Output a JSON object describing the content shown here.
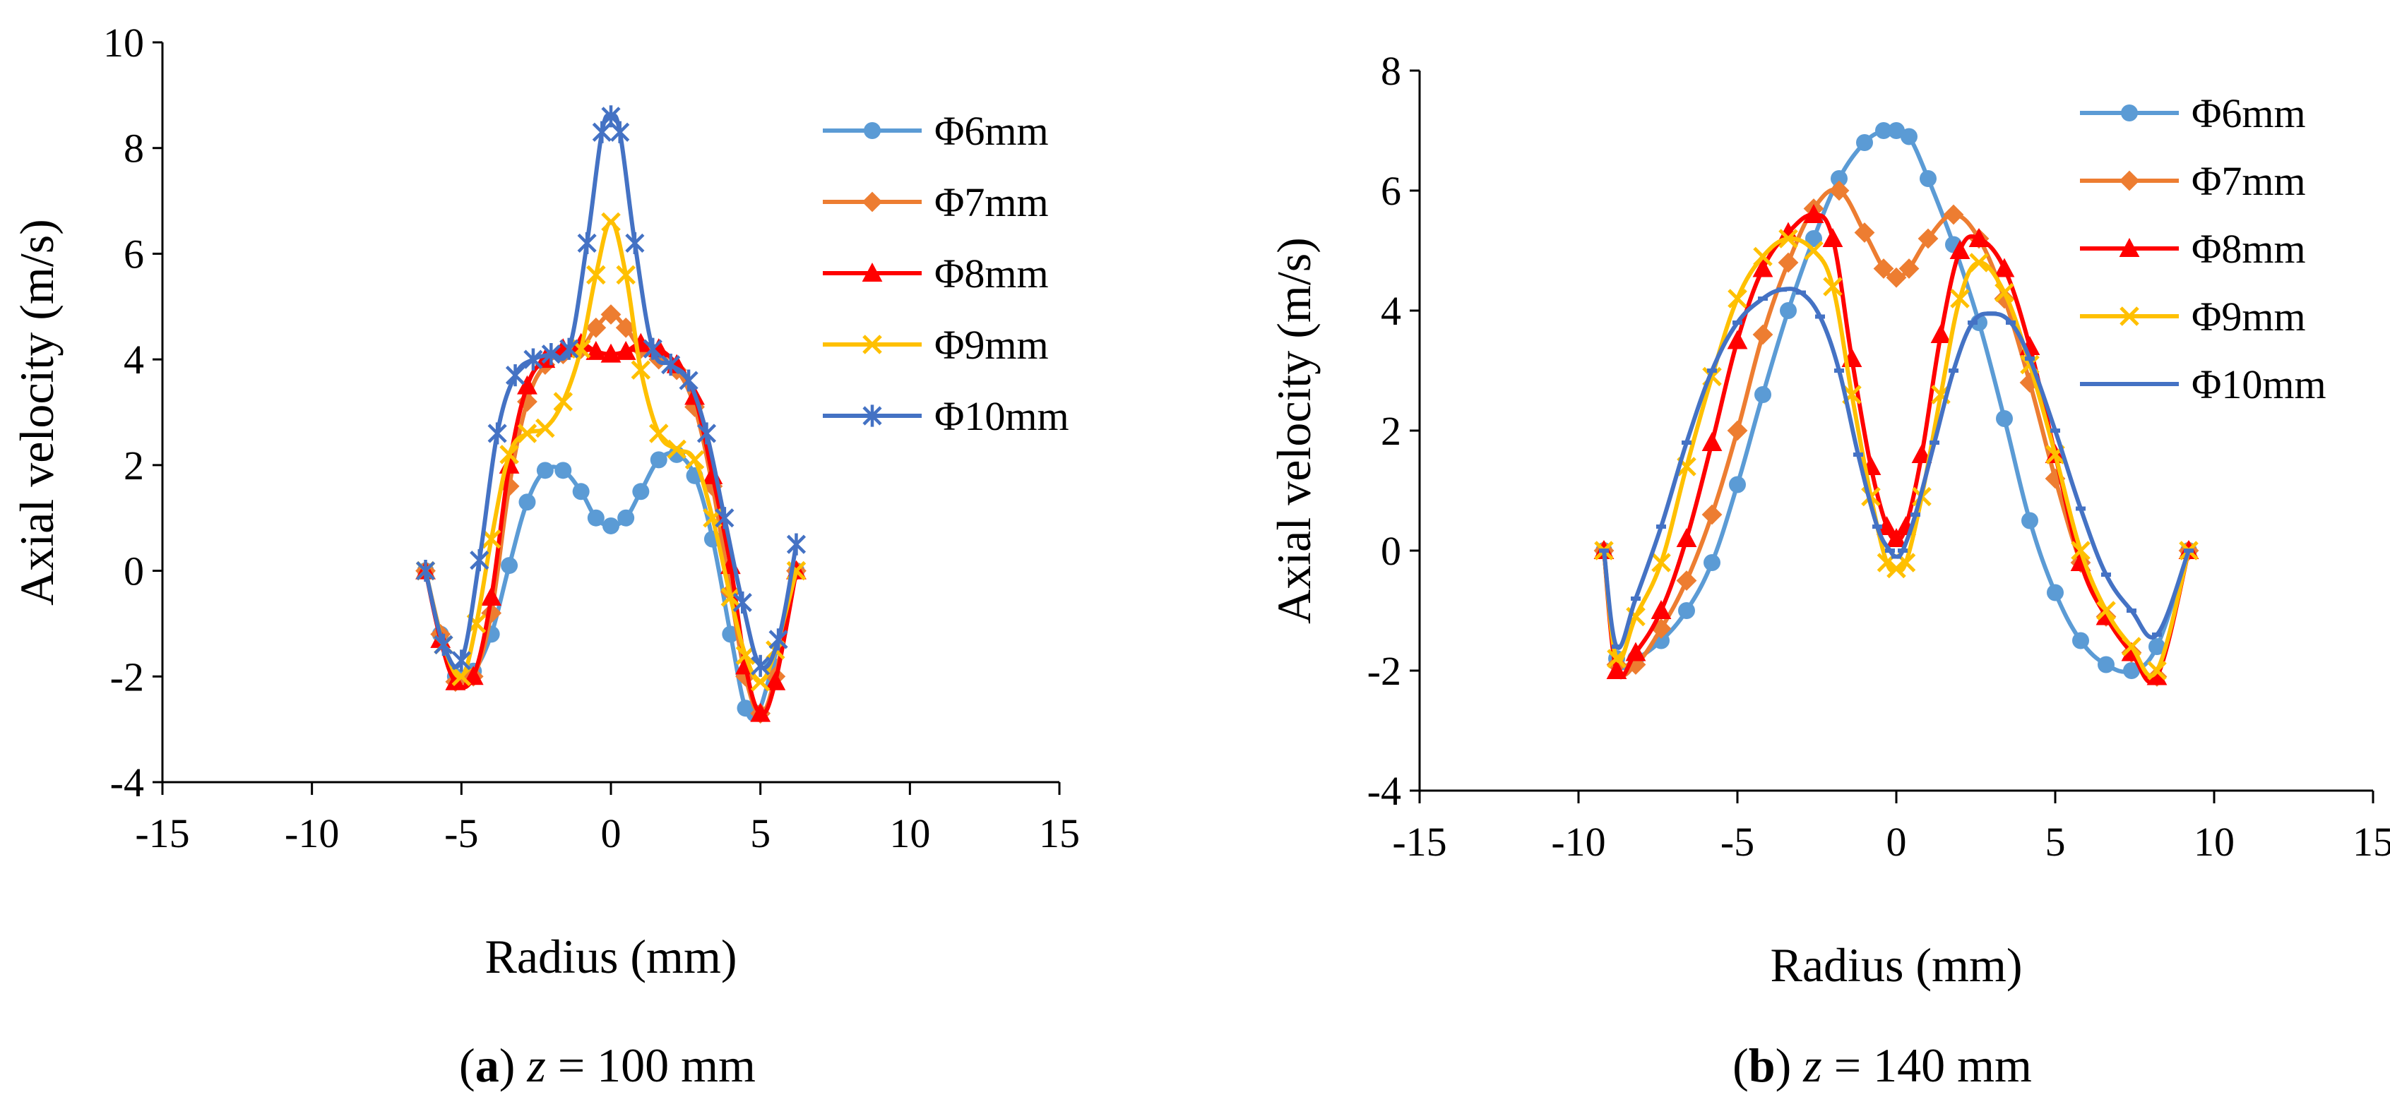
{
  "chart_data": [
    {
      "type": "line",
      "id": "a",
      "caption": {
        "label": "a",
        "z_symbol": "z",
        "rest": " = 100 mm"
      },
      "xlabel": "Radius (mm)",
      "ylabel": "Axial velocity (m/s)",
      "xlim": [
        -15,
        15
      ],
      "ylim": [
        -4,
        10
      ],
      "xticks": [
        -15,
        -10,
        -5,
        0,
        5,
        10,
        15
      ],
      "yticks": [
        -4,
        -2,
        0,
        2,
        4,
        6,
        8,
        10
      ],
      "legend_position": "top-right",
      "series": [
        {
          "name": "Φ6mm",
          "color": "#5B9BD5",
          "marker": "circle",
          "x": [
            -6.2,
            -5.7,
            -5.2,
            -4.6,
            -4.0,
            -3.4,
            -2.8,
            -2.2,
            -1.6,
            -1.0,
            -0.5,
            0,
            0.5,
            1.0,
            1.6,
            2.2,
            2.8,
            3.4,
            4.0,
            4.5,
            4.9,
            5.4,
            6.2
          ],
          "y": [
            0,
            -1.2,
            -2.0,
            -1.9,
            -1.2,
            0.1,
            1.3,
            1.9,
            1.9,
            1.5,
            1.0,
            0.85,
            1.0,
            1.5,
            2.1,
            2.2,
            1.8,
            0.6,
            -1.2,
            -2.6,
            -2.7,
            -1.8,
            0
          ]
        },
        {
          "name": "Φ7mm",
          "color": "#ED7D31",
          "marker": "diamond",
          "x": [
            -6.2,
            -5.7,
            -5.2,
            -4.6,
            -4.0,
            -3.4,
            -2.8,
            -2.2,
            -1.6,
            -1.0,
            -0.5,
            0,
            0.5,
            1.0,
            1.6,
            2.2,
            2.8,
            3.4,
            4.0,
            4.5,
            5.0,
            5.5,
            6.2
          ],
          "y": [
            0,
            -1.2,
            -2.1,
            -2.0,
            -0.8,
            1.6,
            3.2,
            3.9,
            4.1,
            4.2,
            4.6,
            4.85,
            4.6,
            4.2,
            4.0,
            3.8,
            3.1,
            1.6,
            -0.4,
            -2.0,
            -2.7,
            -2.0,
            0
          ]
        },
        {
          "name": "Φ8mm",
          "color": "#FF0000",
          "marker": "triangle",
          "x": [
            -6.2,
            -5.7,
            -5.2,
            -4.6,
            -4.0,
            -3.4,
            -2.8,
            -2.2,
            -1.6,
            -1.0,
            -0.5,
            0,
            0.5,
            1.0,
            1.6,
            2.2,
            2.8,
            3.4,
            4.0,
            4.5,
            5.0,
            5.5,
            6.2
          ],
          "y": [
            0,
            -1.3,
            -2.1,
            -2.0,
            -0.5,
            2.0,
            3.5,
            4.0,
            4.2,
            4.3,
            4.15,
            4.1,
            4.15,
            4.3,
            4.2,
            3.9,
            3.3,
            1.8,
            0.1,
            -1.8,
            -2.7,
            -2.1,
            0
          ]
        },
        {
          "name": "Φ9mm",
          "color": "#FFC000",
          "marker": "x",
          "x": [
            -6.2,
            -5.6,
            -5.0,
            -4.5,
            -4.0,
            -3.4,
            -2.8,
            -2.2,
            -1.6,
            -1.0,
            -0.5,
            0,
            0.5,
            1.0,
            1.6,
            2.2,
            2.8,
            3.4,
            4.0,
            4.5,
            5.0,
            5.5,
            6.2
          ],
          "y": [
            0,
            -1.4,
            -2.0,
            -1.0,
            0.6,
            2.2,
            2.6,
            2.7,
            3.2,
            4.2,
            5.6,
            6.6,
            5.6,
            3.8,
            2.6,
            2.3,
            2.1,
            1.0,
            -0.5,
            -1.6,
            -2.1,
            -1.5,
            0
          ]
        },
        {
          "name": "Φ10mm",
          "color": "#4472C4",
          "marker": "star",
          "x": [
            -6.2,
            -5.6,
            -5.0,
            -4.4,
            -3.8,
            -3.2,
            -2.6,
            -2.0,
            -1.4,
            -0.8,
            -0.3,
            0,
            0.3,
            0.8,
            1.4,
            2.0,
            2.6,
            3.2,
            3.8,
            4.4,
            5.0,
            5.6,
            6.2
          ],
          "y": [
            0,
            -1.4,
            -1.7,
            0.2,
            2.6,
            3.7,
            4.0,
            4.1,
            4.2,
            6.2,
            8.3,
            8.6,
            8.3,
            6.2,
            4.2,
            3.9,
            3.6,
            2.6,
            1.0,
            -0.6,
            -1.8,
            -1.3,
            0.5
          ]
        }
      ]
    },
    {
      "type": "line",
      "id": "b",
      "caption": {
        "label": "b",
        "z_symbol": "z",
        "rest": " = 140 mm"
      },
      "xlabel": "Radius (mm)",
      "ylabel": "Axial velocity (m/s)",
      "xlim": [
        -15,
        15
      ],
      "ylim": [
        -4,
        8
      ],
      "xticks": [
        -15,
        -10,
        -5,
        0,
        5,
        10,
        15
      ],
      "yticks": [
        -4,
        -2,
        0,
        2,
        4,
        6,
        8
      ],
      "legend_position": "top-right",
      "series": [
        {
          "name": "Φ6mm",
          "color": "#5B9BD5",
          "marker": "circle",
          "x": [
            -9.2,
            -8.8,
            -8.2,
            -7.4,
            -6.6,
            -5.8,
            -5.0,
            -4.2,
            -3.4,
            -2.6,
            -1.8,
            -1.0,
            -0.4,
            0,
            0.4,
            1.0,
            1.8,
            2.6,
            3.4,
            4.2,
            5.0,
            5.8,
            6.6,
            7.4,
            8.2,
            9.2
          ],
          "y": [
            0,
            -1.8,
            -1.8,
            -1.5,
            -1.0,
            -0.2,
            1.1,
            2.6,
            4.0,
            5.2,
            6.2,
            6.8,
            7.0,
            7.0,
            6.9,
            6.2,
            5.1,
            3.8,
            2.2,
            0.5,
            -0.7,
            -1.5,
            -1.9,
            -2.0,
            -1.6,
            0
          ]
        },
        {
          "name": "Φ7mm",
          "color": "#ED7D31",
          "marker": "diamond",
          "x": [
            -9.2,
            -8.8,
            -8.2,
            -7.4,
            -6.6,
            -5.8,
            -5.0,
            -4.2,
            -3.4,
            -2.6,
            -1.8,
            -1.0,
            -0.4,
            0,
            0.4,
            1.0,
            1.8,
            2.6,
            3.4,
            4.2,
            5.0,
            5.8,
            6.6,
            7.4,
            8.2,
            9.2
          ],
          "y": [
            0,
            -1.9,
            -1.9,
            -1.3,
            -0.5,
            0.6,
            2.0,
            3.6,
            4.8,
            5.7,
            6.0,
            5.3,
            4.7,
            4.55,
            4.7,
            5.2,
            5.6,
            5.2,
            4.2,
            2.8,
            1.2,
            -0.2,
            -1.1,
            -1.7,
            -2.1,
            0
          ]
        },
        {
          "name": "Φ8mm",
          "color": "#FF0000",
          "marker": "triangle",
          "x": [
            -9.2,
            -8.8,
            -8.2,
            -7.4,
            -6.6,
            -5.8,
            -5.0,
            -4.2,
            -3.4,
            -2.6,
            -2.0,
            -1.4,
            -0.8,
            -0.3,
            0,
            0.3,
            0.8,
            1.4,
            2.0,
            2.6,
            3.4,
            4.2,
            5.0,
            5.8,
            6.6,
            7.4,
            8.2,
            9.2
          ],
          "y": [
            0,
            -2.0,
            -1.7,
            -1.0,
            0.2,
            1.8,
            3.5,
            4.7,
            5.3,
            5.6,
            5.2,
            3.2,
            1.4,
            0.4,
            0.2,
            0.4,
            1.6,
            3.6,
            5.0,
            5.2,
            4.7,
            3.4,
            1.6,
            -0.2,
            -1.1,
            -1.7,
            -2.1,
            0
          ]
        },
        {
          "name": "Φ9mm",
          "color": "#FFC000",
          "marker": "x",
          "x": [
            -9.2,
            -8.8,
            -8.2,
            -7.4,
            -6.6,
            -5.8,
            -5.0,
            -4.2,
            -3.4,
            -2.6,
            -2.0,
            -1.4,
            -0.8,
            -0.3,
            0,
            0.3,
            0.8,
            1.4,
            2.0,
            2.6,
            3.4,
            4.2,
            5.0,
            5.8,
            6.6,
            7.4,
            8.2,
            9.2
          ],
          "y": [
            0,
            -1.8,
            -1.1,
            -0.2,
            1.4,
            2.9,
            4.2,
            4.9,
            5.2,
            5.0,
            4.4,
            2.6,
            0.9,
            -0.2,
            -0.3,
            -0.2,
            0.9,
            2.6,
            4.2,
            4.8,
            4.3,
            3.1,
            1.6,
            0.0,
            -1.0,
            -1.6,
            -2.0,
            0
          ]
        },
        {
          "name": "Φ10mm",
          "color": "#4472C4",
          "marker": "dash",
          "x": [
            -9.2,
            -8.8,
            -8.2,
            -7.4,
            -6.6,
            -5.8,
            -5.0,
            -4.2,
            -3.6,
            -3.0,
            -2.4,
            -1.8,
            -1.2,
            -0.6,
            -0.2,
            0,
            0.2,
            0.6,
            1.2,
            1.8,
            2.4,
            3.0,
            3.6,
            4.2,
            5.0,
            5.8,
            6.6,
            7.4,
            8.2,
            9.2
          ],
          "y": [
            0,
            -1.6,
            -0.8,
            0.4,
            1.8,
            3.0,
            3.8,
            4.2,
            4.35,
            4.3,
            3.9,
            3.0,
            1.6,
            0.4,
            0.0,
            -0.1,
            0.0,
            0.6,
            1.8,
            3.0,
            3.8,
            3.95,
            3.8,
            3.2,
            2.0,
            0.7,
            -0.4,
            -1.0,
            -1.4,
            0
          ]
        }
      ]
    }
  ]
}
